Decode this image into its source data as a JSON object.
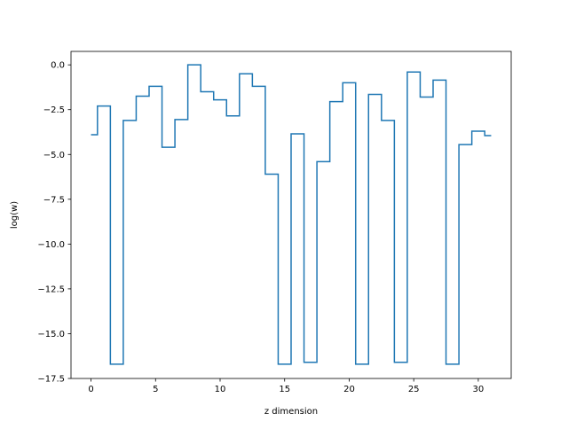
{
  "chart_data": {
    "type": "line",
    "drawstyle": "steps-mid",
    "title": "",
    "xlabel": "z dimension",
    "ylabel": "log(w)",
    "xlim": [
      -1.55,
      32.55
    ],
    "ylim": [
      -17.5,
      0.75
    ],
    "xticks": [
      0,
      5,
      10,
      15,
      20,
      25,
      30
    ],
    "xtick_labels": [
      "0",
      "5",
      "10",
      "15",
      "20",
      "25",
      "30"
    ],
    "yticks": [
      0,
      -2.5,
      -5,
      -7.5,
      -10,
      -12.5,
      -15,
      -17.5
    ],
    "ytick_labels": [
      "0.0",
      "−2.5",
      "−5.0",
      "−7.5",
      "−10.0",
      "−12.5",
      "−15.0",
      "−17.5"
    ],
    "grid": false,
    "line_color": "#1f77b4",
    "series": [
      {
        "x": [
          0,
          1,
          2,
          3,
          4,
          5,
          6,
          7,
          8,
          9,
          10,
          11,
          12,
          13,
          14,
          15,
          16,
          17,
          18,
          19,
          20,
          21,
          22,
          23,
          24,
          25,
          26,
          27,
          28,
          29,
          30,
          31
        ],
        "values": [
          -3.9,
          -2.3,
          -16.7,
          -3.1,
          -1.75,
          -1.2,
          -4.6,
          -3.05,
          0.0,
          -1.5,
          -1.95,
          -2.85,
          -0.5,
          -1.2,
          -6.1,
          -16.7,
          -3.85,
          -16.6,
          -5.4,
          -2.05,
          -1.0,
          -16.7,
          -1.65,
          -3.1,
          -16.6,
          -0.4,
          -1.8,
          -0.85,
          -16.7,
          -4.45,
          -3.7,
          -3.95
        ]
      }
    ]
  }
}
